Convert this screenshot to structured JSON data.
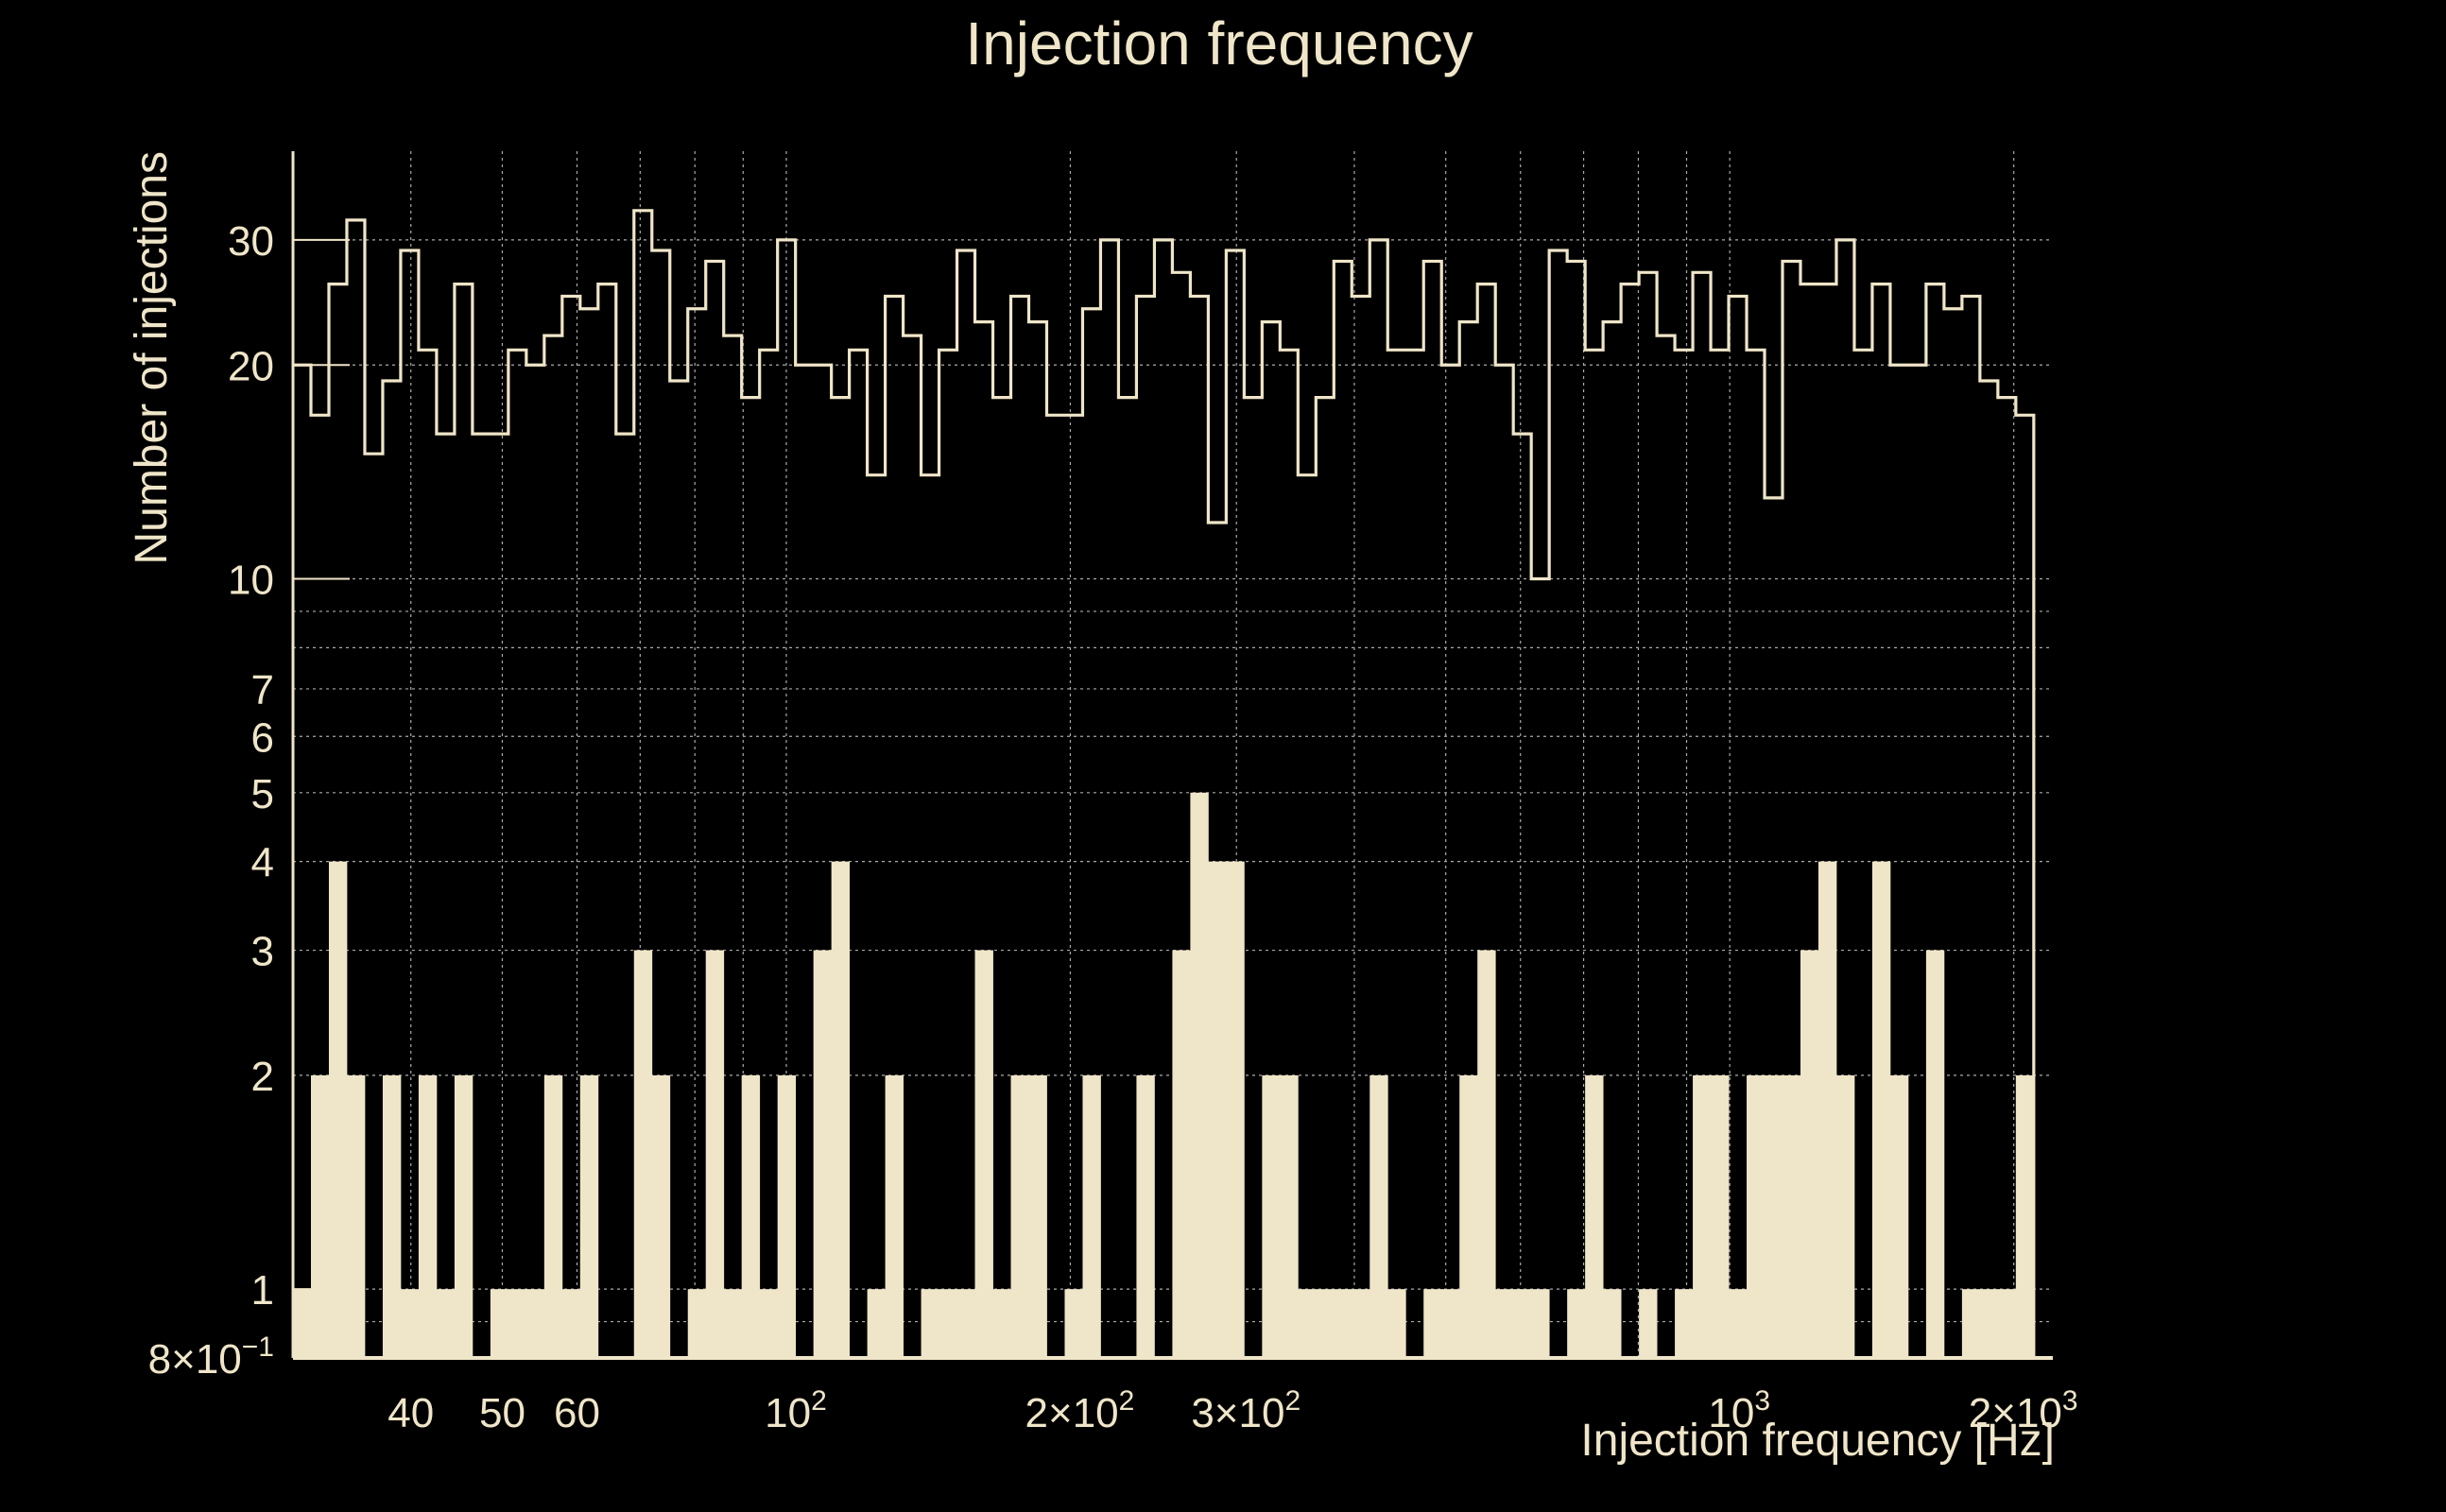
{
  "chart_data": {
    "type": "bar",
    "title": "Injection frequency",
    "xlabel": "Injection frequency [Hz]",
    "ylabel": "Number of injections",
    "x_scale": "log",
    "y_scale": "log",
    "xlim": [
      30,
      2200
    ],
    "ylim": [
      0.8,
      40
    ],
    "grid": true,
    "colors": {
      "background": "#000000",
      "foreground": "#efe5c8",
      "grid": "#aaaaaa"
    },
    "x_ticks": [
      {
        "value": 40,
        "label": "40"
      },
      {
        "value": 50,
        "label": "50"
      },
      {
        "value": 60,
        "label": "60"
      },
      {
        "value": 100,
        "label": "10",
        "sup": "2"
      },
      {
        "value": 200,
        "label": "2×10",
        "sup": "2"
      },
      {
        "value": 300,
        "label": "3×10",
        "sup": "2"
      },
      {
        "value": 1000,
        "label": "10",
        "sup": "3"
      },
      {
        "value": 2000,
        "label": "2×10",
        "sup": "3"
      }
    ],
    "y_ticks": [
      {
        "value": 0.8,
        "label": "8×10",
        "sup": "−1"
      },
      {
        "value": 1,
        "label": "1"
      },
      {
        "value": 2,
        "label": "2"
      },
      {
        "value": 3,
        "label": "3"
      },
      {
        "value": 4,
        "label": "4"
      },
      {
        "value": 5,
        "label": "5"
      },
      {
        "value": 6,
        "label": "6"
      },
      {
        "value": 7,
        "label": "7"
      },
      {
        "value": 10,
        "label": "10"
      },
      {
        "value": 20,
        "label": "20"
      },
      {
        "value": 30,
        "label": "30"
      }
    ],
    "bin_edges_range": [
      30,
      2100
    ],
    "series": [
      {
        "style": "step",
        "values": [
          20,
          17,
          26,
          32,
          15,
          19,
          29,
          21,
          16,
          26,
          16,
          16,
          21,
          20,
          22,
          25,
          24,
          26,
          16,
          33,
          29,
          19,
          24,
          28,
          22,
          18,
          21,
          30,
          20,
          20,
          18,
          21,
          14,
          25,
          22,
          14,
          21,
          29,
          23,
          18,
          25,
          23,
          17,
          17,
          24,
          30,
          18,
          25,
          30,
          27,
          25,
          12,
          29,
          18,
          23,
          21,
          14,
          18,
          28,
          25,
          30,
          21,
          21,
          28,
          20,
          23,
          26,
          20,
          16,
          10,
          29,
          28,
          21,
          23,
          26,
          27,
          22,
          21,
          27,
          21,
          25,
          21,
          13,
          28,
          26,
          26,
          30,
          21,
          26,
          20,
          20,
          26,
          24,
          25,
          19,
          18,
          17
        ]
      },
      {
        "style": "filled",
        "values": [
          1,
          2,
          4,
          2,
          0,
          2,
          1,
          2,
          1,
          2,
          0,
          1,
          1,
          1,
          2,
          1,
          2,
          0,
          0,
          3,
          2,
          0,
          1,
          3,
          1,
          2,
          1,
          2,
          0,
          3,
          4,
          0,
          1,
          2,
          0,
          1,
          1,
          1,
          3,
          1,
          2,
          2,
          0,
          1,
          2,
          0,
          0,
          2,
          0,
          3,
          5,
          4,
          4,
          0,
          2,
          2,
          1,
          1,
          1,
          1,
          2,
          1,
          0,
          1,
          1,
          2,
          3,
          1,
          1,
          1,
          0,
          1,
          2,
          1,
          0,
          1,
          0,
          1,
          2,
          2,
          1,
          2,
          2,
          2,
          3,
          4,
          2,
          0,
          4,
          2,
          0,
          3,
          0,
          1,
          1,
          1,
          2
        ]
      }
    ]
  }
}
